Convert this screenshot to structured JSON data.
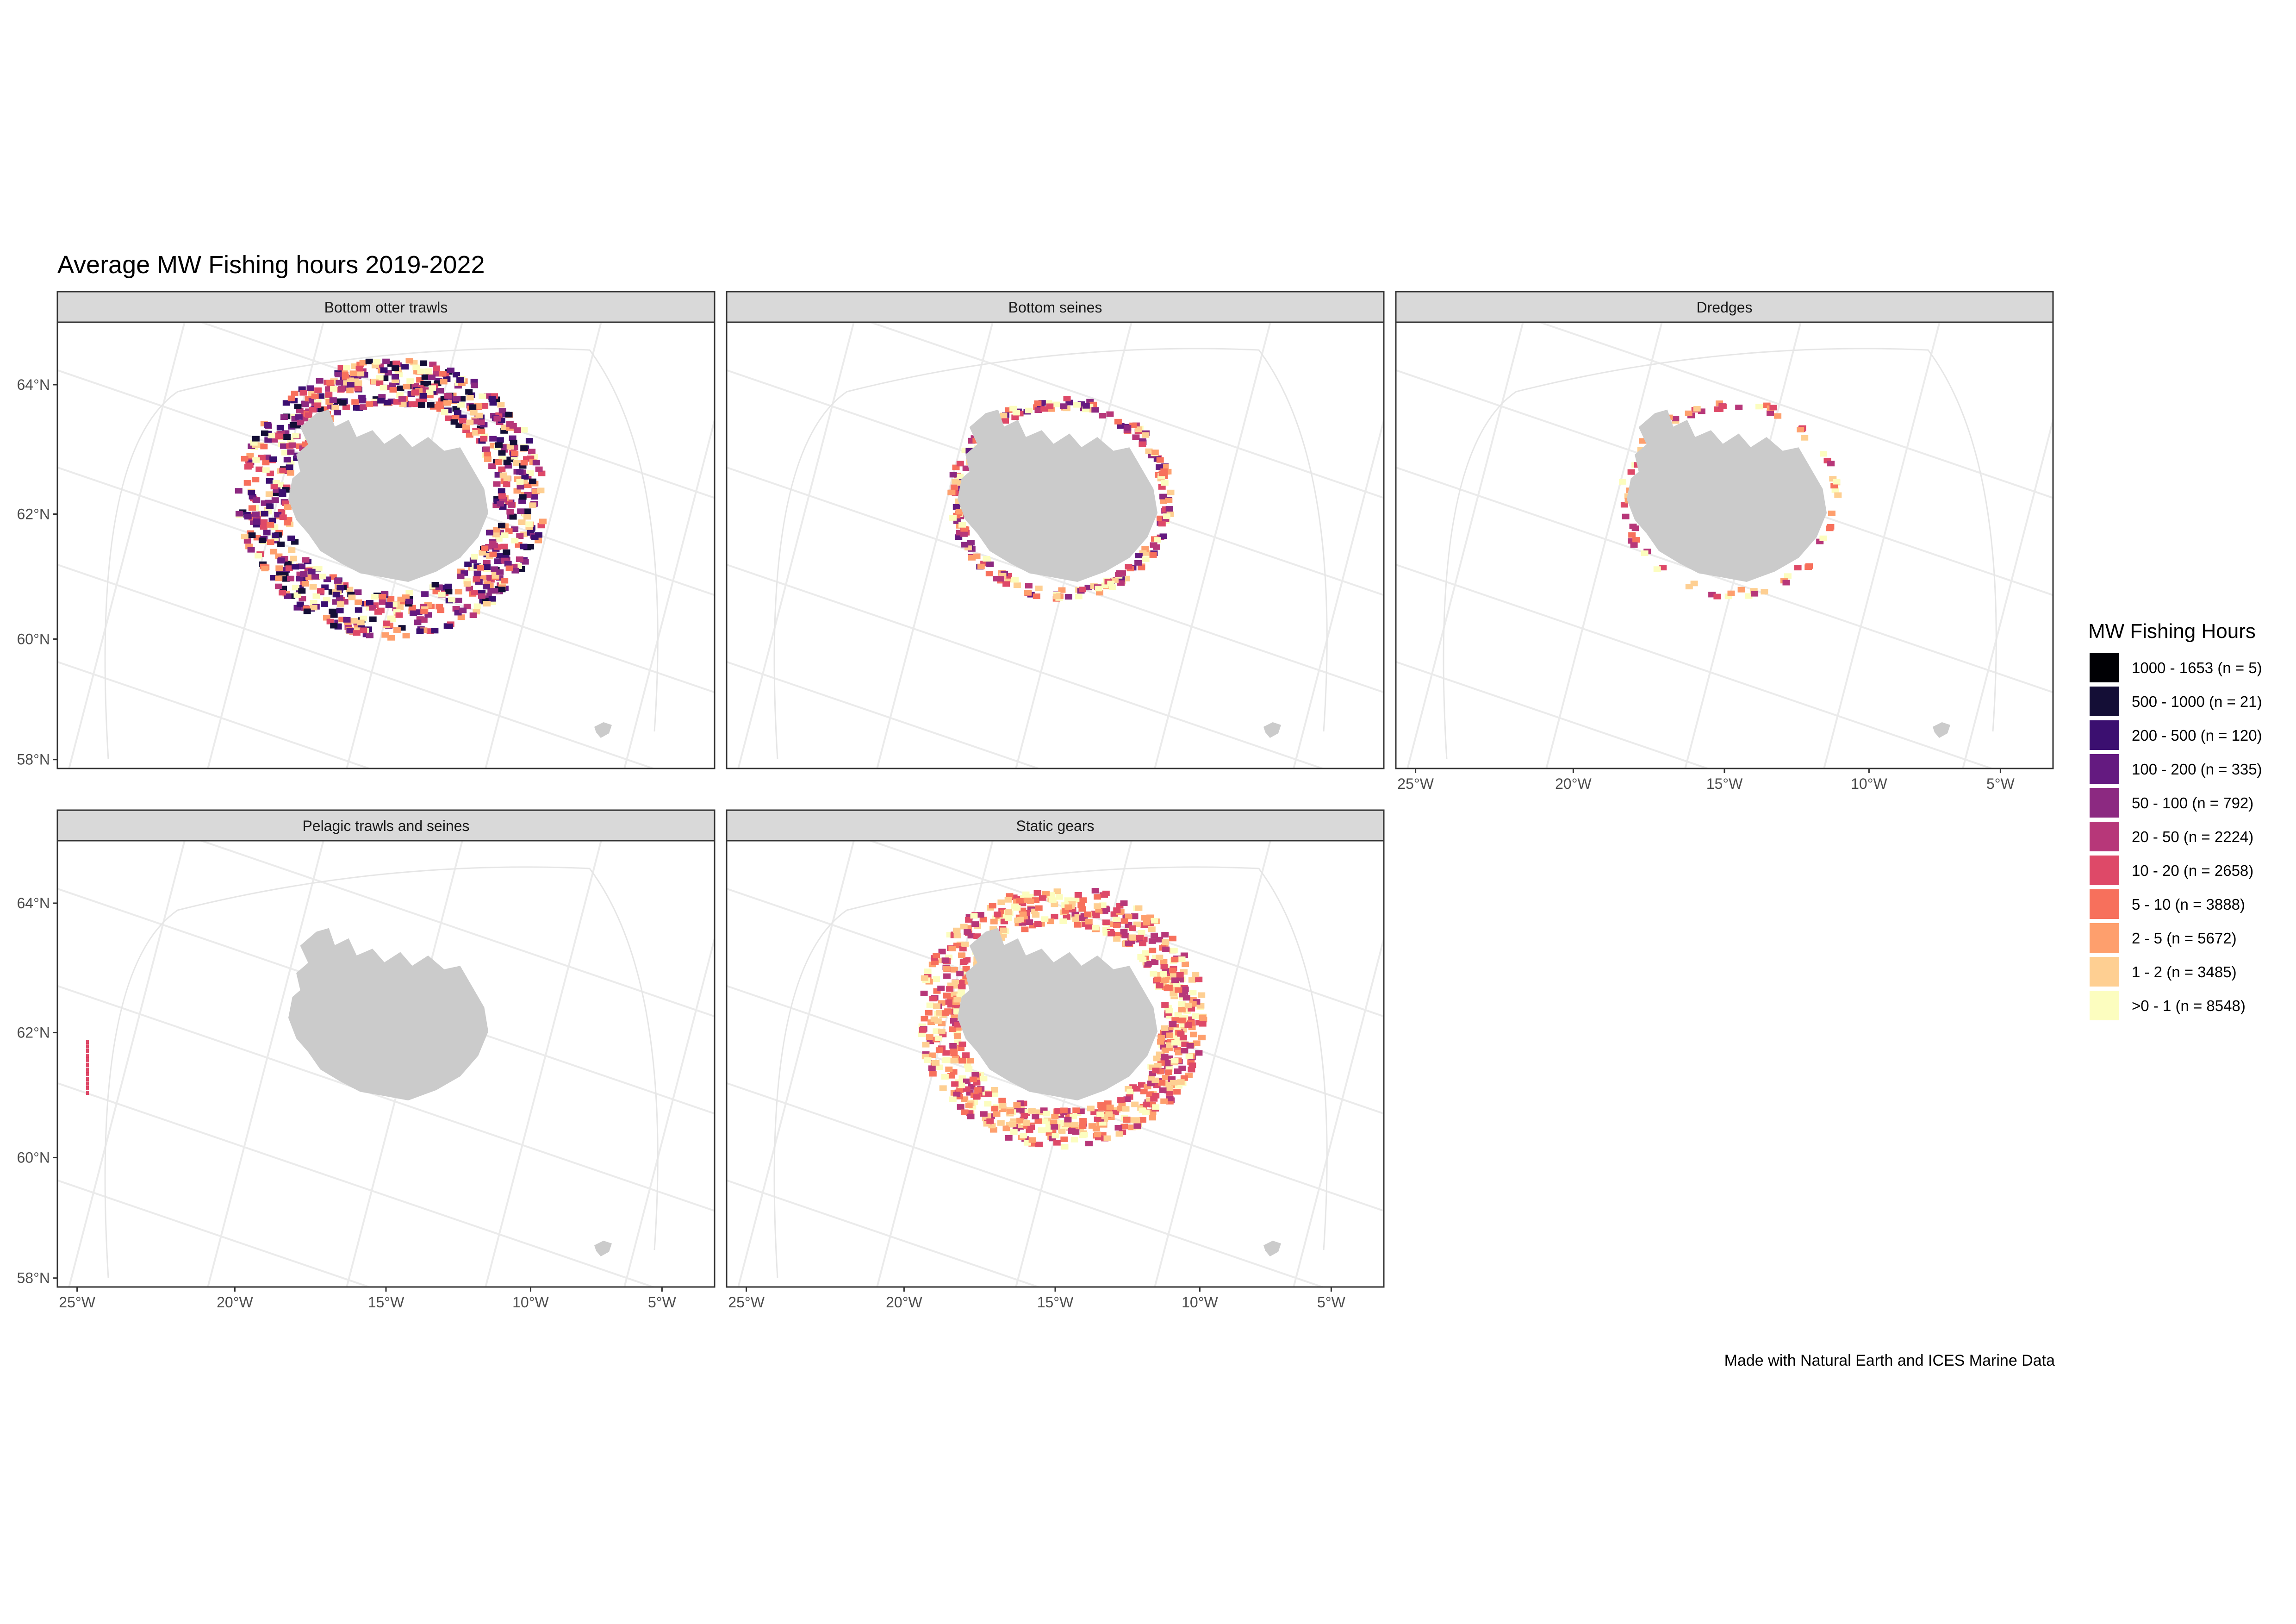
{
  "title": "Average MW Fishing hours 2019-2022",
  "caption": "Made with Natural Earth and ICES Marine Data",
  "panels": [
    {
      "id": "bottom-otter-trawls",
      "label": "Bottom otter trawls",
      "intensity": "very-high"
    },
    {
      "id": "bottom-seines",
      "label": "Bottom seines",
      "intensity": "medium"
    },
    {
      "id": "dredges",
      "label": "Dredges",
      "intensity": "low"
    },
    {
      "id": "pelagic-trawls-and-seines",
      "label": "Pelagic trawls and seines",
      "intensity": "minimal"
    },
    {
      "id": "static-gears",
      "label": "Static gears",
      "intensity": "high"
    }
  ],
  "axes": {
    "y_ticks": [
      "64°N",
      "62°N",
      "60°N",
      "58°N"
    ],
    "x_ticks": [
      "25°W",
      "20°W",
      "15°W",
      "10°W",
      "5°W"
    ]
  },
  "legend": {
    "title": "MW Fishing Hours",
    "items": [
      {
        "label": "1000 - 1653 (n = 5)",
        "color": "#000004"
      },
      {
        "label": "500 - 1000 (n = 21)",
        "color": "#140E36"
      },
      {
        "label": "200 - 500 (n = 120)",
        "color": "#3B0F70"
      },
      {
        "label": "100 - 200 (n = 335)",
        "color": "#641A80"
      },
      {
        "label": "50 - 100 (n = 792)",
        "color": "#8C2981"
      },
      {
        "label": "20 - 50 (n = 2224)",
        "color": "#B73779"
      },
      {
        "label": "10 - 20 (n = 2658)",
        "color": "#DE4968"
      },
      {
        "label": "5 - 10 (n = 3888)",
        "color": "#F7705C"
      },
      {
        "label": "2 - 5 (n = 5672)",
        "color": "#FE9F6D"
      },
      {
        "label": "1 - 2 (n = 3485)",
        "color": "#FECF92"
      },
      {
        "label": ">0 - 1 (n = 8548)",
        "color": "#FCFDBF"
      }
    ]
  },
  "colors": {
    "land": "#CBCBCB",
    "grid": "#EBEBEB",
    "strip": "#D9D9D9",
    "panel_border": "#333333"
  }
}
